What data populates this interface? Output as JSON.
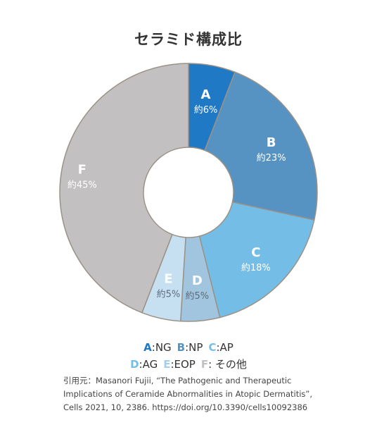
{
  "title": "セラミド構成比",
  "chart_data": {
    "type": "pie",
    "donut": true,
    "title": "セラミド構成比",
    "slices": [
      {
        "letter": "A",
        "label": "約6%",
        "value": 6,
        "color": "#2079c4",
        "legend": ":NG"
      },
      {
        "letter": "B",
        "label": "約23%",
        "value": 23,
        "color": "#5693c3",
        "legend": ":NP"
      },
      {
        "letter": "C",
        "label": "約18%",
        "value": 18,
        "color": "#74bde6",
        "legend": ":AP"
      },
      {
        "letter": "D",
        "label": "約5%",
        "value": 5,
        "color": "#a1c4df",
        "legend": ":AG"
      },
      {
        "letter": "E",
        "label": "約5%",
        "value": 5,
        "color": "#c6e0f2",
        "legend": ":EOP"
      },
      {
        "letter": "F",
        "label": "約45%",
        "value": 45,
        "color": "#c2c0c0",
        "legend": ": その他"
      }
    ],
    "legend_placement": "bottom"
  },
  "legend_rows": [
    [
      0,
      1,
      2
    ],
    [
      3,
      4,
      5
    ]
  ],
  "legend_code_colors": [
    "#2079c4",
    "#5693c3",
    "#74bde6",
    "#74bde6",
    "#a5cde9",
    "#c2c0c0"
  ],
  "citation": [
    "引用元：Masanori Fujii, “The Pathogenic and Therapeutic",
    "Implications of Ceramide Abnormalities in Atopic Dermatitis”,",
    "Cells 2021, 10, 2386. https://doi.org/10.3390/cells10092386"
  ]
}
